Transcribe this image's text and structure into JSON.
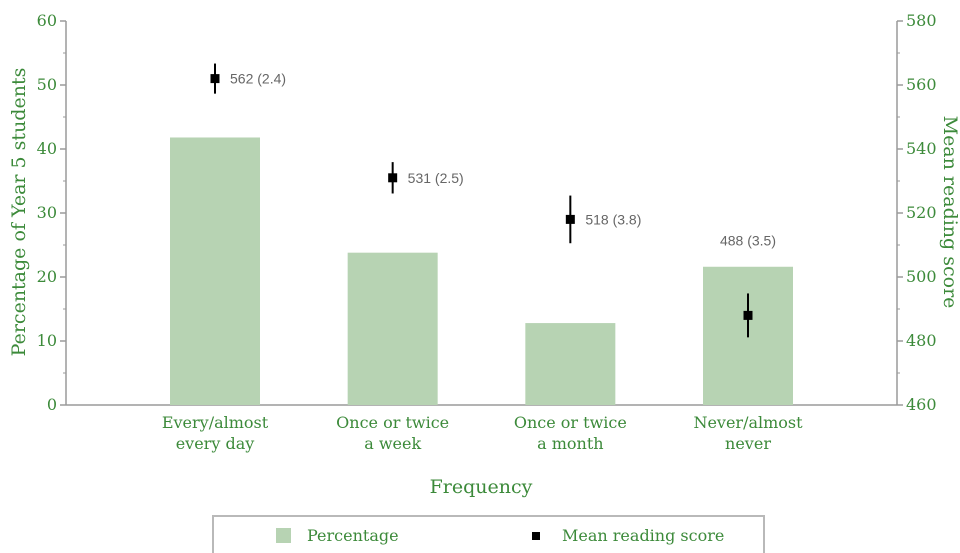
{
  "chart_data": {
    "type": "bar",
    "categories": [
      [
        "Every/almost",
        "every day"
      ],
      [
        "Once or twice",
        "a week"
      ],
      [
        "Once or twice",
        "a month"
      ],
      [
        "Never/almost",
        "never"
      ]
    ],
    "xlabel": "Frequency",
    "ylabel": "Percentage of Year 5 students",
    "ylabel_right": "Mean reading score",
    "ylim": [
      0,
      60
    ],
    "y_ticks": [
      0,
      10,
      20,
      30,
      40,
      50,
      60
    ],
    "ylim_right": [
      460,
      580
    ],
    "y_ticks_right": [
      460,
      480,
      500,
      520,
      540,
      560,
      580
    ],
    "series": [
      {
        "name": "Percentage",
        "axis": "left",
        "type": "bar",
        "values": [
          41.8,
          23.8,
          12.8,
          21.6
        ],
        "color": "#b7d3b3"
      },
      {
        "name": "Mean reading score",
        "axis": "right",
        "type": "point",
        "values": [
          562,
          531,
          518,
          488
        ],
        "errors": [
          2.4,
          2.5,
          3.8,
          3.5
        ],
        "labels": [
          "562 (2.4)",
          "531 (2.5)",
          "518 (3.8)",
          "488 (3.5)"
        ],
        "color": "#000000"
      }
    ],
    "legend": {
      "position": "bottom",
      "items": [
        {
          "label": "Percentage",
          "marker": "square-fill",
          "color": "#b7d3b3"
        },
        {
          "label": "Mean reading score",
          "marker": "square",
          "color": "#000000"
        }
      ]
    },
    "colors": {
      "axis_text": "#3c8a3a",
      "axis_line": "#9a9a9a",
      "data_label": "#666666"
    }
  }
}
